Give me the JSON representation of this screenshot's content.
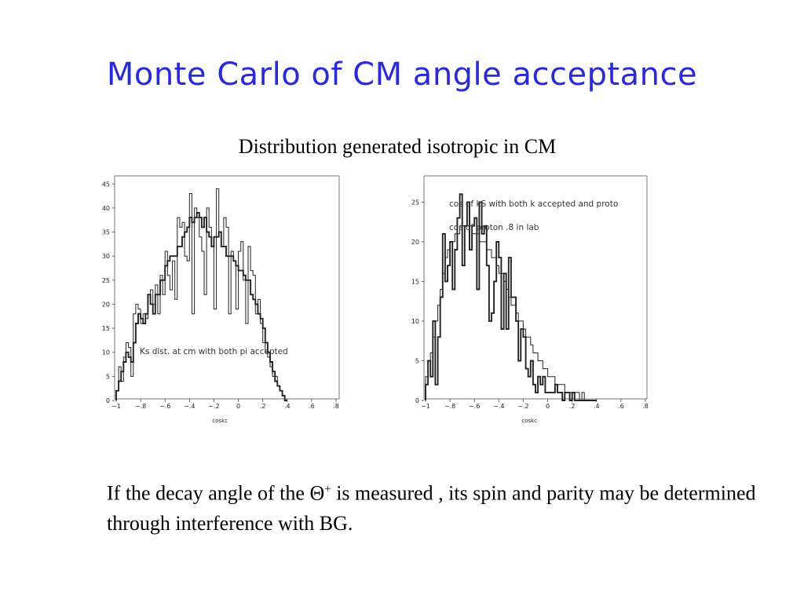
{
  "slide": {
    "title": "Monte Carlo of CM angle acceptance",
    "subtitle": "Distribution generated isotropic in CM",
    "caption_part1": "If the decay angle of the ",
    "caption_symbol": "Θ",
    "caption_superscript": "+",
    "caption_part2": " is measured , its spin and parity may be determined through interference with BG."
  },
  "chart_data": [
    {
      "type": "bar",
      "xlabel": "coskc",
      "annotations": [
        "Ks dist. at cm with both pi accepted"
      ],
      "xlim": [
        -1,
        0.8
      ],
      "ylim": [
        0,
        47
      ],
      "xticks": [
        -1,
        -0.8,
        -0.6,
        -0.4,
        -0.2,
        0,
        0.2,
        0.4,
        0.6,
        0.8
      ],
      "yticks": [
        0,
        5,
        10,
        15,
        20,
        25,
        30,
        35,
        40,
        45
      ],
      "grid": false,
      "series": [
        {
          "x_start": -1,
          "bin_width": 0.02,
          "values": [
            2,
            7,
            4,
            9,
            12,
            11,
            5,
            18,
            20,
            19,
            16,
            18,
            17,
            22,
            23,
            20,
            24,
            18,
            26,
            22,
            31,
            26,
            23,
            29,
            21,
            38,
            36,
            37,
            30,
            29,
            43,
            18,
            40,
            38,
            34,
            31,
            22,
            40,
            36,
            32,
            19,
            44,
            35,
            32,
            38,
            36,
            18,
            31,
            29,
            19,
            31,
            33,
            25,
            16,
            32,
            27,
            26,
            18,
            21,
            16,
            12,
            10,
            9,
            7,
            5,
            5,
            3,
            2,
            1,
            0
          ]
        },
        {
          "x_start": -1,
          "bin_width": 0.02,
          "values": [
            2,
            4,
            6,
            8,
            10,
            9,
            8,
            12,
            16,
            18,
            17,
            16,
            18,
            22,
            20,
            18,
            22,
            22,
            25,
            25,
            28,
            29,
            30,
            30,
            30,
            32,
            32,
            34,
            35,
            36,
            38,
            37,
            38,
            39,
            38,
            36,
            38,
            35,
            34,
            32,
            34,
            34,
            35,
            32,
            32,
            30,
            30,
            30,
            29,
            28,
            27,
            27,
            26,
            25,
            25,
            22,
            21,
            20,
            18,
            17,
            15,
            12,
            10,
            8,
            6,
            4,
            3,
            2,
            1,
            0
          ]
        }
      ]
    },
    {
      "type": "bar",
      "xlabel": "coskc",
      "annotations": [
        "cos of kS with both k accepted and proto",
        "cos of proton .8 in lab"
      ],
      "xlim": [
        -1,
        0.8
      ],
      "ylim": [
        0,
        28.5
      ],
      "xticks": [
        -1,
        -0.8,
        -0.6,
        -0.4,
        -0.2,
        0,
        0.2,
        0.4,
        0.6,
        0.8
      ],
      "yticks": [
        0,
        5,
        10,
        15,
        20,
        25
      ],
      "grid": false,
      "series": [
        {
          "x_start": -1,
          "bin_width": 0.02,
          "values": [
            3,
            5,
            6,
            8,
            10,
            12,
            14,
            16,
            18,
            19,
            20,
            20,
            21,
            21,
            22,
            22,
            22,
            22,
            22,
            21,
            21,
            21,
            20,
            20,
            20,
            19,
            19,
            18,
            18,
            17,
            16,
            16,
            15,
            14,
            13,
            12,
            12,
            11,
            10,
            10,
            9,
            8,
            8,
            7,
            6,
            6,
            5,
            5,
            4,
            4,
            3,
            3,
            3,
            2,
            2,
            2,
            2,
            1,
            1,
            1,
            1,
            1,
            1,
            0,
            1,
            0,
            0,
            0,
            0,
            0
          ]
        },
        {
          "x_start": -1,
          "bin_width": 0.02,
          "values": [
            2,
            5,
            3,
            10,
            2,
            8,
            13,
            21,
            15,
            17,
            20,
            14,
            19,
            23,
            26,
            17,
            22,
            25,
            19,
            22,
            23,
            14,
            25,
            21,
            22,
            17,
            10,
            11,
            15,
            20,
            18,
            9,
            16,
            9,
            18,
            13,
            13,
            10,
            5,
            9,
            8,
            4,
            3,
            5,
            2,
            1,
            3,
            2,
            3,
            1,
            1,
            1,
            1,
            2,
            1,
            1,
            0,
            1,
            1,
            0,
            1,
            0,
            0,
            0,
            0,
            0,
            0,
            0,
            0,
            0
          ]
        }
      ]
    }
  ]
}
